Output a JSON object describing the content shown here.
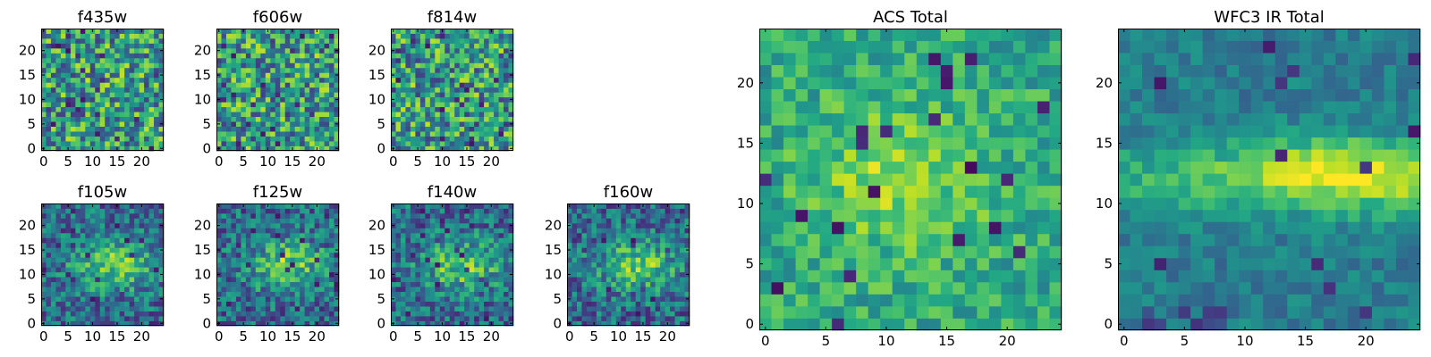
{
  "chart_data": [
    {
      "type": "heatmap",
      "title": "f435w",
      "grid_size": 25,
      "colormap": "viridis",
      "x_ticks": [
        0,
        5,
        10,
        15,
        20
      ],
      "y_ticks": [
        0,
        5,
        10,
        15,
        20
      ],
      "pattern": "noise",
      "seed": 11
    },
    {
      "type": "heatmap",
      "title": "f606w",
      "grid_size": 25,
      "colormap": "viridis",
      "x_ticks": [
        0,
        5,
        10,
        15,
        20
      ],
      "y_ticks": [
        0,
        5,
        10,
        15,
        20
      ],
      "pattern": "noise",
      "seed": 23
    },
    {
      "type": "heatmap",
      "title": "f814w",
      "grid_size": 25,
      "colormap": "viridis",
      "x_ticks": [
        0,
        5,
        10,
        15,
        20
      ],
      "y_ticks": [
        0,
        5,
        10,
        15,
        20
      ],
      "pattern": "noise",
      "seed": 37
    },
    {
      "type": "heatmap",
      "title": "f105w",
      "grid_size": 25,
      "colormap": "viridis",
      "x_ticks": [
        0,
        5,
        10,
        15,
        20
      ],
      "y_ticks": [
        0,
        5,
        10,
        15,
        20
      ],
      "pattern": "blob",
      "seed": 41
    },
    {
      "type": "heatmap",
      "title": "f125w",
      "grid_size": 25,
      "colormap": "viridis",
      "x_ticks": [
        0,
        5,
        10,
        15,
        20
      ],
      "y_ticks": [
        0,
        5,
        10,
        15,
        20
      ],
      "pattern": "blob",
      "seed": 53
    },
    {
      "type": "heatmap",
      "title": "f140w",
      "grid_size": 25,
      "colormap": "viridis",
      "x_ticks": [
        0,
        5,
        10,
        15,
        20
      ],
      "y_ticks": [
        0,
        5,
        10,
        15,
        20
      ],
      "pattern": "blob",
      "seed": 67
    },
    {
      "type": "heatmap",
      "title": "f160w",
      "grid_size": 25,
      "colormap": "viridis",
      "x_ticks": [
        0,
        5,
        10,
        15,
        20
      ],
      "y_ticks": [
        0,
        5,
        10,
        15,
        20
      ],
      "pattern": "blob",
      "seed": 79
    },
    {
      "type": "heatmap",
      "title": "ACS Total",
      "grid_size": 25,
      "colormap": "viridis",
      "x_ticks": [
        0,
        5,
        10,
        15,
        20
      ],
      "y_ticks": [
        0,
        5,
        10,
        15,
        20
      ],
      "pattern": "acs",
      "seed": 97
    },
    {
      "type": "heatmap",
      "title": "WFC3 IR Total",
      "grid_size": 25,
      "colormap": "viridis",
      "x_ticks": [
        0,
        5,
        10,
        15,
        20
      ],
      "y_ticks": [
        0,
        5,
        10,
        15,
        20
      ],
      "pattern": "wfc3",
      "seed": 131
    }
  ]
}
